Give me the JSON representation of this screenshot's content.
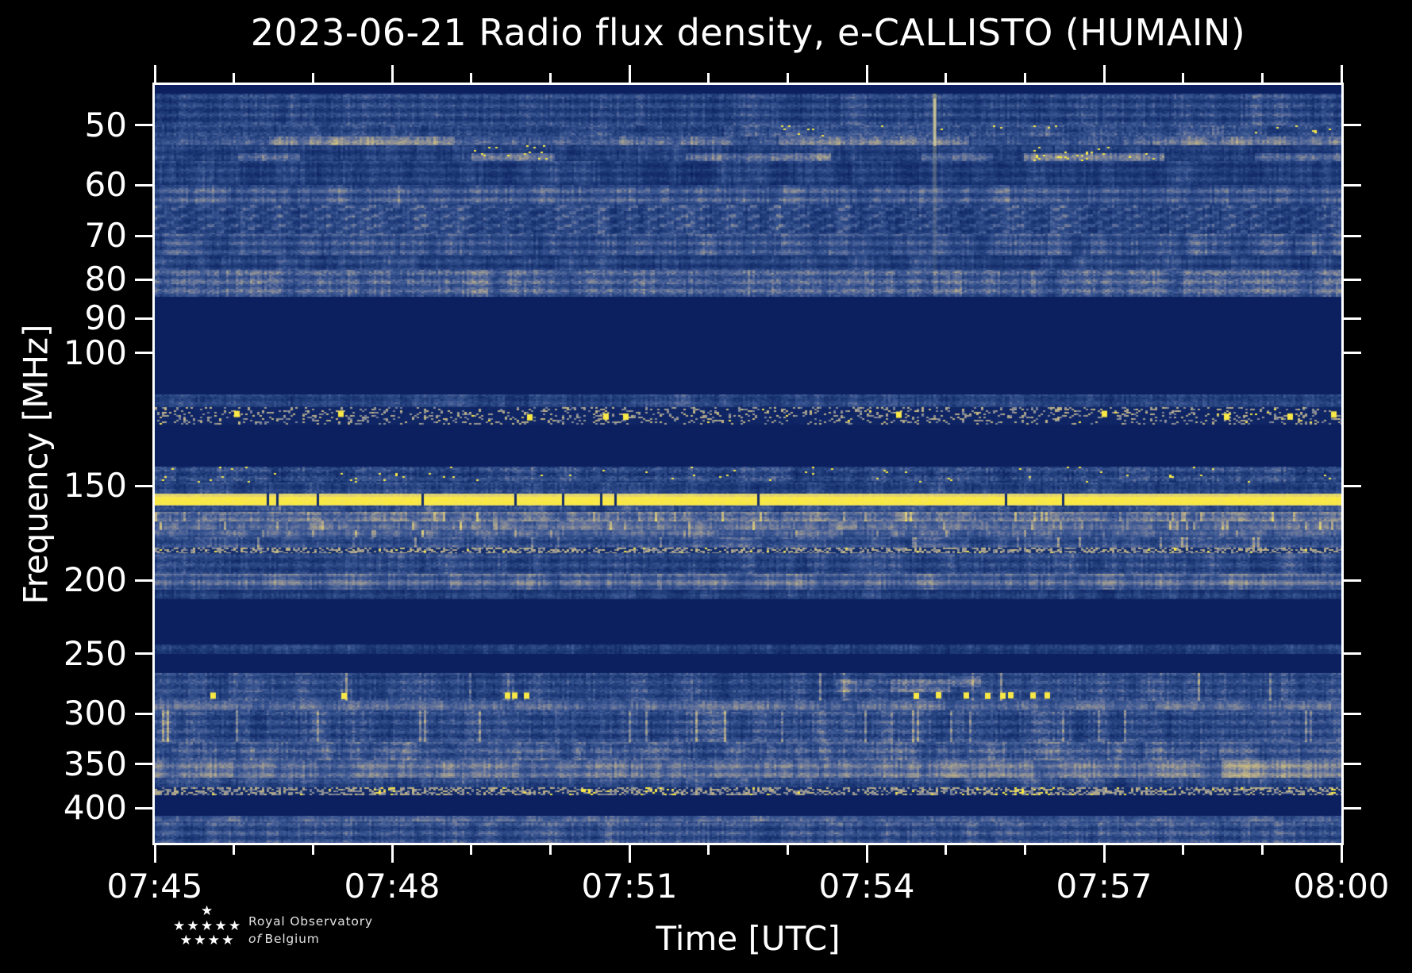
{
  "figure": {
    "title": "2023-06-21 Radio flux density, e-CALLISTO (HUMAIN)",
    "background": "#000000",
    "text_color": "#ffffff"
  },
  "logo": {
    "line1": "Royal Observatory",
    "line2_italic": "of",
    "line2_rest": "Belgium",
    "star_char": "★",
    "star_rows": [
      1,
      5,
      4
    ]
  },
  "chart_data": {
    "type": "heatmap",
    "subtype": "radio-spectrogram",
    "title": "2023-06-21 Radio flux density, e-CALLISTO (HUMAIN)",
    "xlabel": "Time [UTC]",
    "ylabel": "Frequency [MHz]",
    "x_start_label": "07:45",
    "x_end_label": "08:00",
    "x_range_min": [
      0,
      15
    ],
    "x_ticks": [
      {
        "t": 0,
        "label": "07:45"
      },
      {
        "t": 3,
        "label": "07:48"
      },
      {
        "t": 6,
        "label": "07:51"
      },
      {
        "t": 9,
        "label": "07:54"
      },
      {
        "t": 12,
        "label": "07:57"
      },
      {
        "t": 15,
        "label": "08:00"
      }
    ],
    "x_minor_ticks_min": [
      1,
      2,
      4,
      5,
      7,
      8,
      10,
      11,
      13,
      14
    ],
    "y_scale": "log",
    "y_axis_inverted": true,
    "y_range": [
      44.2,
      444.9
    ],
    "y_ticks": [
      50,
      60,
      70,
      80,
      90,
      100,
      150,
      200,
      250,
      300,
      350,
      400
    ],
    "grid": false,
    "legend": "none",
    "colors": {
      "bg": "#0c2060",
      "spine": "#ffffff",
      "ramp": [
        [
          0.0,
          "#0c2060"
        ],
        [
          0.18,
          "#17316f"
        ],
        [
          0.3,
          "#25427f"
        ],
        [
          0.42,
          "#3b5793"
        ],
        [
          0.52,
          "#61719b"
        ],
        [
          0.62,
          "#8e9094"
        ],
        [
          0.72,
          "#b7ac89"
        ],
        [
          0.82,
          "#dacb79"
        ],
        [
          0.9,
          "#f2e45c"
        ],
        [
          1.0,
          "#fcea3d"
        ]
      ]
    },
    "bands": [
      {
        "name": "noise-45-50",
        "f": [
          45.4,
          50
        ],
        "kind": "noise",
        "level": 0.3,
        "var": 0.16,
        "rowAmp": 0.09
      },
      {
        "name": "dash-row-50-52",
        "f": [
          50,
          51.7
        ],
        "kind": "noise",
        "level": 0.3,
        "var": 0.18,
        "rowAmp": 0.05,
        "segments": [
          {
            "t": [
              7.4,
              15
            ],
            "add": 0.06
          }
        ],
        "clusters": [
          {
            "t": [
              7.5,
              9.3
            ],
            "bright": 0.02
          },
          {
            "t": [
              9.9,
              11.4
            ],
            "bright": 0.02
          },
          {
            "t": [
              13.9,
              15
            ],
            "bright": 0.03
          }
        ]
      },
      {
        "name": "tan-band-52-53",
        "f": [
          51.7,
          53.1
        ],
        "kind": "noise",
        "level": 0.4,
        "var": 0.14,
        "rowAmp": 0.05,
        "segments": [
          {
            "t": [
              1.5,
              3.8
            ],
            "add": 0.16
          },
          {
            "t": [
              5.9,
              7.3
            ],
            "add": 0.1
          },
          {
            "t": [
              7.9,
              10.3
            ],
            "add": 0.13
          },
          {
            "t": [
              12.6,
              15
            ],
            "add": 0.13
          }
        ]
      },
      {
        "name": "tan-band-54-56",
        "f": [
          53.1,
          55.7
        ],
        "kind": "noise",
        "level": 0.27,
        "var": 0.14,
        "rowAmp": 0.06,
        "segments": [
          {
            "t": [
              1.05,
              1.85
            ],
            "add": 0.18,
            "f": [
              54.2,
              55.7
            ]
          },
          {
            "t": [
              4.0,
              5.05
            ],
            "add": 0.26,
            "f": [
              54.2,
              55.7
            ]
          },
          {
            "t": [
              6.7,
              8.55
            ],
            "add": 0.22,
            "f": [
              54.2,
              55.7
            ]
          },
          {
            "t": [
              9.7,
              10.6
            ],
            "add": 0.16,
            "f": [
              54.2,
              55.7
            ]
          },
          {
            "t": [
              11.0,
              12.75
            ],
            "add": 0.26,
            "f": [
              54.2,
              55.7
            ]
          },
          {
            "t": [
              13.9,
              15
            ],
            "add": 0.22,
            "f": [
              54.2,
              55.7
            ]
          }
        ],
        "clusters": [
          {
            "t": [
              4.0,
              5.0
            ],
            "bright": 0.05
          },
          {
            "t": [
              11.0,
              12.7
            ],
            "bright": 0.05
          }
        ]
      },
      {
        "name": "noise-56-60",
        "f": [
          55.7,
          60
        ],
        "kind": "noise",
        "level": 0.26,
        "var": 0.14,
        "rowAmp": 0.07
      },
      {
        "name": "light-band-60-64",
        "f": [
          60,
          63.7
        ],
        "kind": "noise",
        "level": 0.4,
        "var": 0.13,
        "rowAmp": 0.1
      },
      {
        "name": "comb-64-70",
        "f": [
          63.7,
          69.6
        ],
        "kind": "comb",
        "level": 0.3,
        "var": 0.12,
        "rowAmp": 0.05
      },
      {
        "name": "noise-70-74",
        "f": [
          69.6,
          74.3
        ],
        "kind": "noise",
        "level": 0.37,
        "var": 0.14,
        "rowAmp": 0.09
      },
      {
        "name": "noise-74-78",
        "f": [
          74.3,
          77.6
        ],
        "kind": "noise",
        "level": 0.3,
        "var": 0.13,
        "rowAmp": 0.08
      },
      {
        "name": "dense-78-84",
        "f": [
          77.6,
          84.1
        ],
        "kind": "noise",
        "level": 0.45,
        "var": 0.17,
        "rowAmp": 0.08
      },
      {
        "name": "noise-113-118",
        "f": [
          113.5,
          118
        ],
        "kind": "noise",
        "level": 0.3,
        "var": 0.15,
        "rowAmp": 0.05
      },
      {
        "name": "airband-speckle",
        "f": [
          118,
          124.4
        ],
        "kind": "speckle",
        "p": 0.22,
        "bright": 0.015,
        "base": 0.06,
        "clusters": [
          {
            "t": [
              11.7,
              12.2
            ],
            "bright": 0.1
          },
          {
            "t": [
              13.4,
              15
            ],
            "bright": 0.12
          }
        ],
        "dots": {
          "f": [
            119,
            123
          ],
          "t": [
            1.03,
            2.35,
            4.74,
            5.7,
            5.95,
            9.4,
            12.0,
            13.55,
            14.35,
            14.9
          ]
        }
      },
      {
        "name": "speckle-141-148",
        "f": [
          141.4,
          148.4
        ],
        "kind": "noise",
        "level": 0.3,
        "var": 0.2,
        "bright": 0.012,
        "rowAmp": 0.08
      },
      {
        "name": "noise-148-154",
        "f": [
          148.4,
          153.5
        ],
        "kind": "noise",
        "level": 0.3,
        "var": 0.15,
        "rowAmp": 0.05
      },
      {
        "name": "bright-band-156",
        "f": [
          153.5,
          159.2
        ],
        "kind": "solid",
        "gapP": 0.02
      },
      {
        "name": "noise-159-162",
        "f": [
          159.2,
          162.3
        ],
        "kind": "noise",
        "level": 0.33,
        "var": 0.15
      },
      {
        "name": "tan-162-167",
        "f": [
          162.3,
          167.1
        ],
        "kind": "noise",
        "level": 0.52,
        "var": 0.14,
        "streakP": 0.05,
        "rowAmp": 0.06
      },
      {
        "name": "gray-167-172",
        "f": [
          167.1,
          171.6
        ],
        "kind": "noise",
        "level": 0.5,
        "var": 0.1,
        "streakP": 0.04,
        "rowAmp": 0.04
      },
      {
        "name": "gray-172-175",
        "f": [
          171.6,
          175.4
        ],
        "kind": "noise",
        "level": 0.44,
        "var": 0.1,
        "streakP": 0.04
      },
      {
        "name": "noise-175-181",
        "f": [
          175.4,
          181
        ],
        "kind": "noise",
        "level": 0.37,
        "var": 0.15,
        "streakP": 0.03
      },
      {
        "name": "speckle-row-182",
        "f": [
          181,
          184.1
        ],
        "kind": "speckle",
        "p": 0.5,
        "bright": 0.04,
        "base": 0.15
      },
      {
        "name": "noise-184-196",
        "f": [
          184.1,
          196
        ],
        "kind": "noise",
        "level": 0.33,
        "var": 0.16,
        "rowAmp": 0.07
      },
      {
        "name": "gray-196-206",
        "f": [
          196,
          205.7
        ],
        "kind": "noise",
        "level": 0.47,
        "var": 0.11,
        "rowAmp": 0.1
      },
      {
        "name": "fade-206-212",
        "f": [
          205.7,
          211.8
        ],
        "kind": "noise",
        "level": 0.26,
        "var": 0.12,
        "rowAmp": 0.06
      },
      {
        "name": "thin-243-250",
        "f": [
          243.1,
          250
        ],
        "kind": "noise",
        "level": 0.26,
        "var": 0.13,
        "rowAmp": 0.05
      },
      {
        "name": "noise-265-288",
        "f": [
          265.1,
          288.5
        ],
        "kind": "noise",
        "level": 0.34,
        "var": 0.17,
        "streakP": 0.03,
        "rowAmp": 0.07,
        "segments": [
          {
            "t": [
              8.6,
              9.05
            ],
            "add": 0.14,
            "f": [
              270,
              280
            ]
          },
          {
            "t": [
              9.3,
              10.05
            ],
            "add": 0.16,
            "f": [
              270,
              281
            ]
          },
          {
            "t": [
              10.05,
              10.45
            ],
            "add": 0.18,
            "f": [
              267,
              276
            ]
          }
        ],
        "dots": {
          "f": [
            281,
            287
          ],
          "t": [
            0.73,
            2.39,
            4.45,
            4.55,
            4.7,
            9.62,
            9.9,
            10.25,
            10.53,
            10.72,
            10.82,
            11.1,
            11.28
          ]
        }
      },
      {
        "name": "gray-288-297",
        "f": [
          288.5,
          297.1
        ],
        "kind": "noise",
        "level": 0.48,
        "var": 0.1,
        "rowAmp": 0.05
      },
      {
        "name": "noise-297-327",
        "f": [
          297.1,
          327.3
        ],
        "kind": "noise",
        "level": 0.35,
        "var": 0.17,
        "streakP": 0.04,
        "rowAmp": 0.08
      },
      {
        "name": "noise-327-346",
        "f": [
          327.3,
          346
        ],
        "kind": "noise",
        "level": 0.42,
        "var": 0.16,
        "rowAmp": 0.08
      },
      {
        "name": "gray-346-365",
        "f": [
          346,
          365
        ],
        "kind": "noise",
        "level": 0.5,
        "var": 0.12,
        "rowAmp": 0.07,
        "segments": [
          {
            "t": [
              13.5,
              15
            ],
            "add": 0.07
          }
        ]
      },
      {
        "name": "noise-365-376",
        "f": [
          365,
          375.7
        ],
        "kind": "noise",
        "level": 0.35,
        "var": 0.15
      },
      {
        "name": "speckle-row-380",
        "f": [
          375.7,
          385
        ],
        "kind": "speckle",
        "p": 0.5,
        "bright": 0.02,
        "base": 0.12,
        "clusters": [
          {
            "t": [
              2.65,
              3.05
            ],
            "bright": 0.3
          },
          {
            "t": [
              5.35,
              5.6
            ],
            "bright": 0.3
          },
          {
            "t": [
              6.15,
              6.6
            ],
            "bright": 0.3
          },
          {
            "t": [
              10.55,
              11.45
            ],
            "bright": 0.25
          },
          {
            "t": [
              14.8,
              15
            ],
            "bright": 0.4
          }
        ]
      },
      {
        "name": "gray-410-417",
        "f": [
          409.8,
          416.8
        ],
        "kind": "noise",
        "level": 0.45,
        "var": 0.1,
        "rowAmp": 0.05
      },
      {
        "name": "noise-417-445",
        "f": [
          416.8,
          444.9
        ],
        "kind": "noise",
        "level": 0.37,
        "var": 0.15,
        "rowAmp": 0.09
      }
    ],
    "events": [
      {
        "name": "vertical-burst",
        "t": 9.86,
        "f": [
          45.4,
          84
        ],
        "strength": 0.5
      }
    ]
  }
}
